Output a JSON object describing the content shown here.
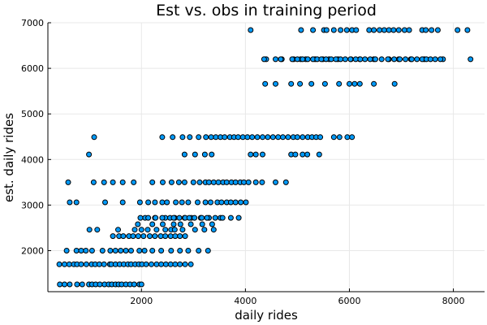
{
  "chart_data": {
    "type": "scatter",
    "title": "Est vs. obs in training period",
    "xlabel": "daily rides",
    "ylabel": "est. daily rides",
    "xlim": [
      200,
      8600
    ],
    "ylim": [
      1100,
      7000
    ],
    "xticks": [
      2000,
      4000,
      6000,
      8000
    ],
    "yticks": [
      2000,
      3000,
      4000,
      5000,
      6000,
      7000
    ],
    "grid": true,
    "legend": "none",
    "marker_color": "#009AFA",
    "marker_edge_color": "#000000",
    "series": [
      {
        "x": [
          430,
          520,
          620,
          760,
          860,
          990,
          1050,
          1120,
          1200,
          1290,
          1370,
          1430,
          1500,
          1560,
          1620,
          1700,
          1780,
          1860,
          1960,
          2000,
          420,
          520,
          610,
          700,
          760,
          840,
          940,
          1040,
          1110,
          1190,
          1280,
          1390,
          1420,
          1500,
          1580,
          1660,
          1740,
          1800,
          1880,
          1950,
          2010,
          2090,
          2190,
          2290,
          2380,
          2470,
          2560,
          2650,
          2740,
          2840,
          2950,
          560,
          750,
          840,
          930,
          1050,
          1250,
          1400,
          1500,
          1600,
          1700,
          1800,
          1960,
          2060,
          2210,
          2380,
          2570,
          2740,
          2900,
          3100,
          3280,
          1450,
          1570,
          1650,
          1760,
          1840,
          1940,
          2040,
          2160,
          2260,
          2370,
          2460,
          2560,
          2650,
          2740,
          2840,
          1000,
          1150,
          1550,
          1870,
          2000,
          2120,
          2290,
          2460,
          2570,
          2640,
          2790,
          3030,
          3210,
          3390,
          1930,
          2210,
          2410,
          2620,
          2750,
          2950,
          3170,
          3360,
          2070,
          2260,
          2460,
          2640,
          2830,
          2960,
          3140,
          3300,
          3520,
          1980,
          2130,
          2270,
          2400,
          2550,
          2620,
          2730,
          2840,
          2920,
          3020,
          3160,
          3260,
          3420,
          3560,
          3720,
          3870,
          620,
          750,
          1300,
          1640,
          1970,
          2130,
          2260,
          2400,
          2490,
          2660,
          2780,
          2900,
          3080,
          3230,
          3330,
          3460,
          3540,
          3640,
          3720,
          3810,
          3910,
          4010,
          590,
          1080,
          1280,
          1450,
          1640,
          1850,
          2210,
          2410,
          2580,
          2720,
          2830,
          3000,
          3120,
          3230,
          3300,
          3390,
          3480,
          3570,
          3640,
          3730,
          3810,
          3900,
          3970,
          4060,
          4200,
          4320,
          4580,
          4780,
          990,
          2830,
          3030,
          3220,
          3350,
          4100,
          4200,
          4330,
          4880,
          4960,
          5100,
          5190,
          5420,
          1090,
          2400,
          2600,
          2790,
          2930,
          3100,
          3240,
          3340,
          3430,
          3520,
          3600,
          3700,
          3780,
          3860,
          3950,
          4040,
          4130,
          4230,
          4330,
          4430,
          4530,
          4630,
          4720,
          4820,
          4920,
          5000,
          5100,
          5200,
          5280,
          5360,
          5440,
          5700,
          5810,
          5960,
          6050,
          4380,
          4580,
          4880,
          5050,
          5270,
          5530,
          5800,
          6000,
          6100,
          6200,
          6470,
          6870,
          4400,
          4700,
          4930,
          5060,
          5160,
          5340,
          5490,
          5610,
          5780,
          6030,
          6200,
          6470,
          6760,
          6950,
          7180,
          7440,
          7800,
          8330,
          4360,
          4580,
          4680,
          4900,
          5000,
          5100,
          5200,
          5300,
          5380,
          5460,
          5550,
          5650,
          5740,
          5830,
          5920,
          6020,
          6120,
          6210,
          6300,
          6400,
          6500,
          6620,
          6740,
          6860,
          6970,
          7080,
          7200,
          7300,
          7400,
          7480,
          7560,
          7650,
          7750,
          4100,
          5070,
          5300,
          5510,
          5560,
          5700,
          5830,
          5950,
          6050,
          6130,
          6380,
          6470,
          6580,
          6670,
          6760,
          6850,
          6950,
          7060,
          7150,
          7400,
          7470,
          7580,
          7700,
          8080,
          8270
        ],
        "y": [
          1260,
          1260,
          1260,
          1260,
          1260,
          1260,
          1260,
          1260,
          1260,
          1260,
          1260,
          1260,
          1260,
          1260,
          1260,
          1260,
          1260,
          1260,
          1260,
          1260,
          1700,
          1700,
          1700,
          1700,
          1700,
          1700,
          1700,
          1700,
          1700,
          1700,
          1700,
          1700,
          1700,
          1700,
          1700,
          1700,
          1700,
          1700,
          1700,
          1700,
          1700,
          1700,
          1700,
          1700,
          1700,
          1700,
          1700,
          1700,
          1700,
          1700,
          1700,
          2000,
          2000,
          2000,
          2000,
          2000,
          2000,
          2000,
          2000,
          2000,
          2000,
          2000,
          2000,
          2000,
          2000,
          2000,
          2000,
          2000,
          2000,
          2000,
          2000,
          2320,
          2320,
          2320,
          2320,
          2320,
          2320,
          2320,
          2320,
          2320,
          2320,
          2320,
          2320,
          2320,
          2320,
          2320,
          2460,
          2460,
          2460,
          2460,
          2460,
          2460,
          2460,
          2460,
          2460,
          2460,
          2460,
          2460,
          2460,
          2460,
          2580,
          2580,
          2580,
          2580,
          2580,
          2580,
          2580,
          2580,
          2720,
          2720,
          2720,
          2720,
          2720,
          2720,
          2720,
          2720,
          2720,
          2720,
          2720,
          2720,
          2720,
          2720,
          2720,
          2720,
          2720,
          2720,
          2720,
          2720,
          2720,
          2720,
          2720,
          2720,
          2720,
          3060,
          3060,
          3060,
          3060,
          3060,
          3060,
          3060,
          3060,
          3060,
          3060,
          3060,
          3060,
          3060,
          3060,
          3060,
          3060,
          3060,
          3060,
          3060,
          3060,
          3060,
          3060,
          3500,
          3500,
          3500,
          3500,
          3500,
          3500,
          3500,
          3500,
          3500,
          3500,
          3500,
          3500,
          3500,
          3500,
          3500,
          3500,
          3500,
          3500,
          3500,
          3500,
          3500,
          3500,
          3500,
          3500,
          3500,
          3500,
          3500,
          3500,
          4110,
          4110,
          4110,
          4110,
          4110,
          4110,
          4110,
          4110,
          4110,
          4110,
          4110,
          4110,
          4110,
          4490,
          4490,
          4490,
          4490,
          4490,
          4490,
          4490,
          4490,
          4490,
          4490,
          4490,
          4490,
          4490,
          4490,
          4490,
          4490,
          4490,
          4490,
          4490,
          4490,
          4490,
          4490,
          4490,
          4490,
          4490,
          4490,
          4490,
          4490,
          4490,
          4490,
          4490,
          4490,
          4490,
          4490,
          4490,
          5660,
          5660,
          5660,
          5660,
          5660,
          5660,
          5660,
          5660,
          5660,
          5660,
          5660,
          5660,
          6200,
          6200,
          6200,
          6200,
          6200,
          6200,
          6200,
          6200,
          6200,
          6200,
          6200,
          6200,
          6200,
          6200,
          6200,
          6200,
          6200,
          6200,
          6200,
          6200,
          6200,
          6200,
          6200,
          6200,
          6200,
          6200,
          6200,
          6200,
          6200,
          6200,
          6200,
          6200,
          6200,
          6200,
          6200,
          6200,
          6200,
          6200,
          6200,
          6200,
          6200,
          6200,
          6200,
          6200,
          6200,
          6200,
          6200,
          6200,
          6200,
          6200,
          6200,
          6840,
          6840,
          6840,
          6840,
          6840,
          6840,
          6840,
          6840,
          6840,
          6840,
          6840,
          6840,
          6840,
          6840,
          6840,
          6840,
          6840,
          6840,
          6840,
          6840,
          6840,
          6840,
          6840,
          6840,
          6840
        ]
      }
    ]
  }
}
